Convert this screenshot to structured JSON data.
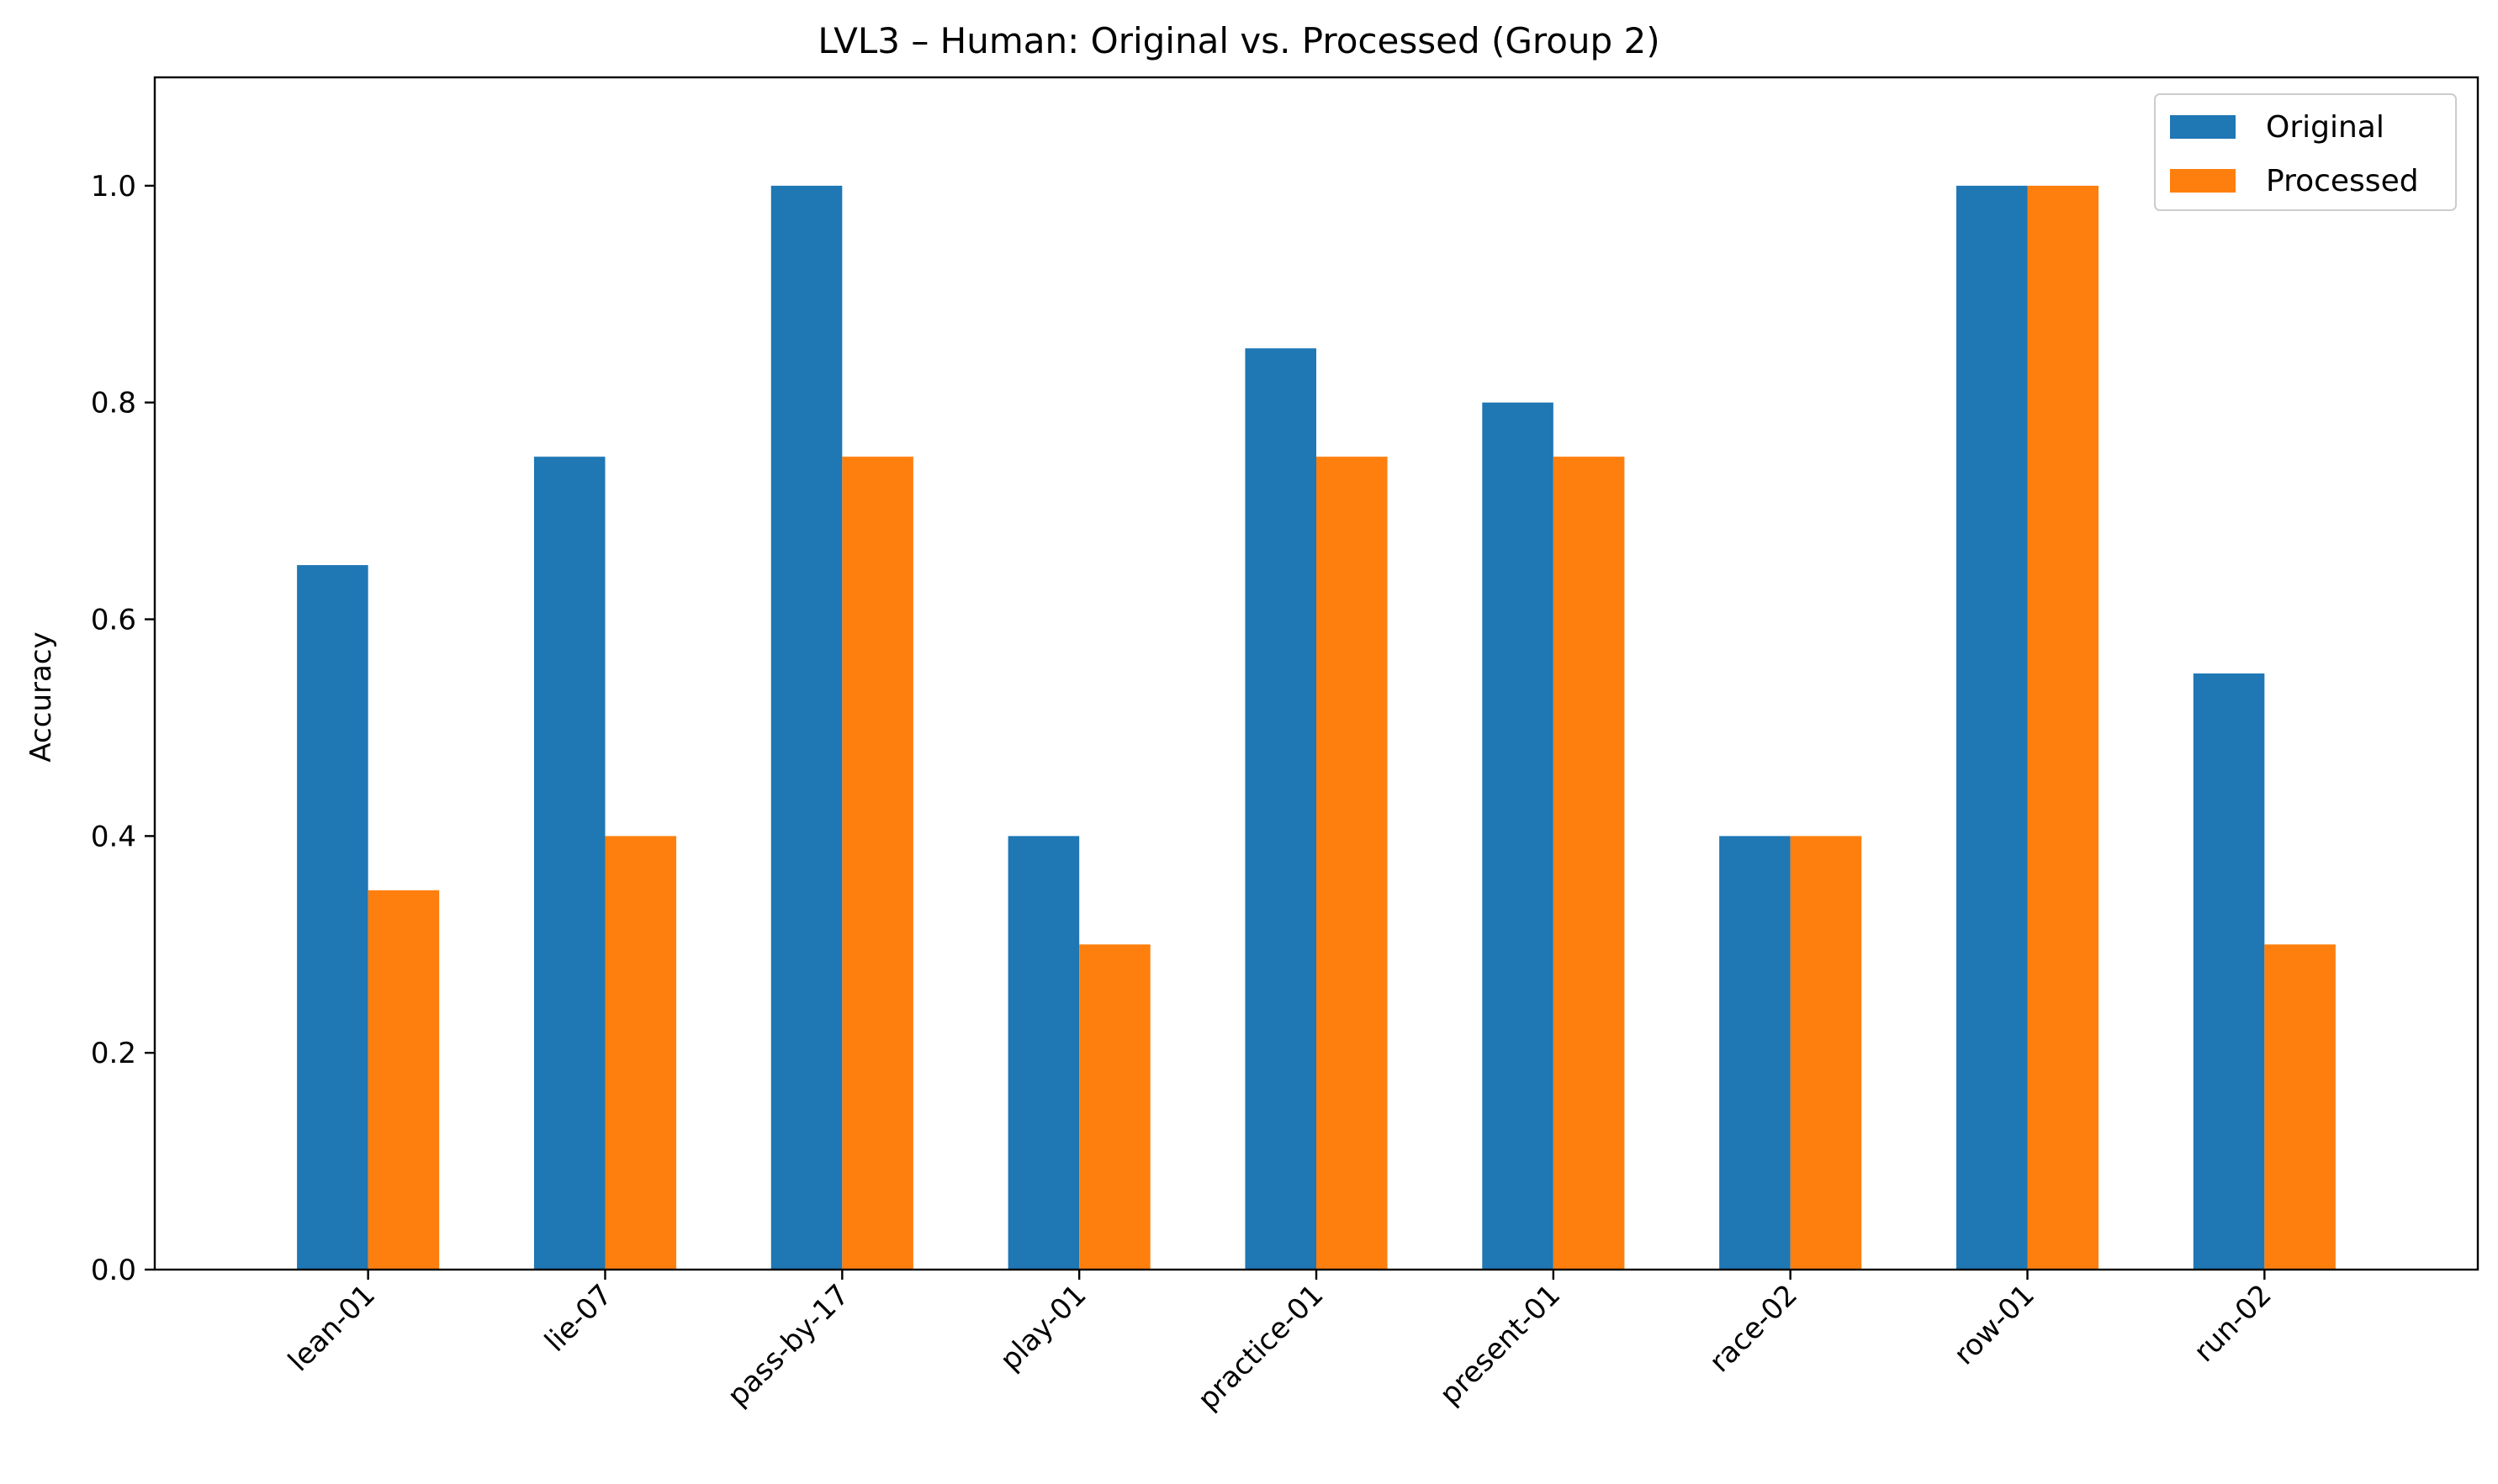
{
  "chart_data": {
    "type": "bar",
    "title": "LVL3 – Human: Original vs. Processed (Group 2)",
    "xlabel": "",
    "ylabel": "Accuracy",
    "ylim": [
      0,
      1.1
    ],
    "yticks": [
      "0.0",
      "0.2",
      "0.4",
      "0.6",
      "0.8",
      "1.0"
    ],
    "categories": [
      "lean-01",
      "lie-07",
      "pass-by-17",
      "play-01",
      "practice-01",
      "present-01",
      "race-02",
      "row-01",
      "run-02"
    ],
    "series": [
      {
        "name": "Original",
        "color": "#1f77b4",
        "values": [
          0.65,
          0.75,
          1.0,
          0.4,
          0.85,
          0.8,
          0.4,
          1.0,
          0.55
        ]
      },
      {
        "name": "Processed",
        "color": "#ff7f0e",
        "values": [
          0.35,
          0.4,
          0.75,
          0.3,
          0.75,
          0.75,
          0.4,
          1.0,
          0.3
        ]
      }
    ],
    "legend": "top-right",
    "grid": false
  }
}
